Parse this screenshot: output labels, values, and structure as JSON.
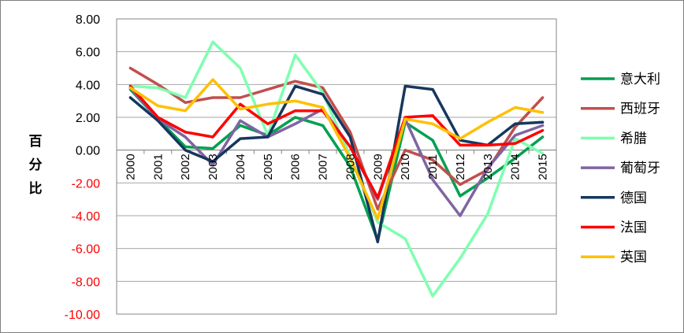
{
  "chart_data": {
    "type": "line",
    "title": "",
    "xlabel": "",
    "ylabel": [
      "百",
      "分",
      "比"
    ],
    "ylim": [
      -10,
      8
    ],
    "yticks": [
      "8.00",
      "6.00",
      "4.00",
      "2.00",
      "0.00",
      "-2.00",
      "-4.00",
      "-6.00",
      "-8.00",
      "-10.00"
    ],
    "y_tick_colors": {
      "positive": "#000000",
      "negative": "#ff0000"
    },
    "grid": "horizontal",
    "legend_position": "right",
    "categories": [
      "2000",
      "2001",
      "2002",
      "2003",
      "2004",
      "2005",
      "2006",
      "2007",
      "2008",
      "2009",
      "2010",
      "2011",
      "2012",
      "2013",
      "2014",
      "2015"
    ],
    "series": [
      {
        "name": "意大利",
        "color": "#00a050",
        "values": [
          3.7,
          1.9,
          0.2,
          0.1,
          1.5,
          0.9,
          2.0,
          1.5,
          -1.0,
          -5.5,
          1.7,
          0.6,
          -2.8,
          -1.7,
          -0.5,
          0.8
        ]
      },
      {
        "name": "西班牙",
        "color": "#c0504d",
        "values": [
          5.0,
          4.0,
          2.9,
          3.2,
          3.2,
          3.7,
          4.2,
          3.8,
          1.1,
          -3.6,
          0.0,
          -0.6,
          -2.1,
          -1.2,
          1.4,
          3.2
        ]
      },
      {
        "name": "希腊",
        "color": "#7fffb0",
        "values": [
          3.9,
          3.8,
          3.2,
          6.6,
          5.0,
          0.9,
          5.8,
          3.5,
          -0.4,
          -4.4,
          -5.4,
          -8.9,
          -6.6,
          -3.9,
          0.7,
          -0.2
        ]
      },
      {
        "name": "葡萄牙",
        "color": "#8064a2",
        "values": [
          3.8,
          1.9,
          0.8,
          -0.9,
          1.8,
          0.8,
          1.6,
          2.5,
          0.2,
          -3.0,
          1.9,
          -1.8,
          -4.0,
          -1.1,
          0.9,
          1.5
        ]
      },
      {
        "name": "德国",
        "color": "#17375e",
        "values": [
          3.2,
          1.8,
          0.0,
          -0.7,
          0.7,
          0.8,
          3.9,
          3.4,
          0.8,
          -5.6,
          3.9,
          3.7,
          0.6,
          0.3,
          1.6,
          1.7
        ]
      },
      {
        "name": "法国",
        "color": "#ff0000",
        "values": [
          3.9,
          2.0,
          1.1,
          0.8,
          2.8,
          1.6,
          2.4,
          2.4,
          0.2,
          -2.9,
          2.0,
          2.1,
          0.3,
          0.3,
          0.4,
          1.2
        ]
      },
      {
        "name": "英国",
        "color": "#ffc000",
        "values": [
          3.8,
          2.7,
          2.4,
          4.3,
          2.5,
          2.8,
          3.0,
          2.6,
          -0.5,
          -4.2,
          1.9,
          1.6,
          0.7,
          1.7,
          2.6,
          2.3
        ]
      }
    ]
  }
}
